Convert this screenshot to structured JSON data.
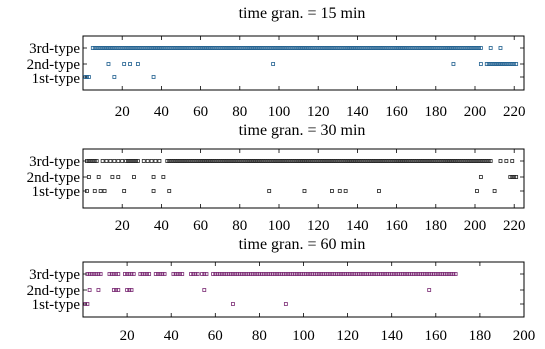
{
  "chart_data": [
    {
      "type": "scatter",
      "title": "time gran. = 15 min",
      "y_categories": [
        "3rd-type",
        "2nd-type",
        "1st-type"
      ],
      "xlim": [
        0,
        225
      ],
      "xticks": [
        20,
        40,
        60,
        80,
        100,
        120,
        140,
        160,
        180,
        200,
        220
      ],
      "marker_color": "#1f5f8f",
      "series": [
        {
          "category": "3rd-type",
          "ranges": [
            [
              5,
              203
            ]
          ],
          "x": [
            208,
            213
          ]
        },
        {
          "category": "2nd-type",
          "ranges": [
            [
              206,
              221
            ]
          ],
          "x": [
            13,
            21,
            24,
            28,
            97,
            189,
            203
          ]
        },
        {
          "category": "1st-type",
          "ranges": [
            [
              1,
              3
            ]
          ],
          "x": [
            16,
            36
          ]
        }
      ]
    },
    {
      "type": "scatter",
      "title": "time gran. = 30 min",
      "y_categories": [
        "3rd-type",
        "2nd-type",
        "1st-type"
      ],
      "xlim": [
        0,
        225
      ],
      "xticks": [
        20,
        40,
        60,
        80,
        100,
        120,
        140,
        160,
        180,
        200,
        220
      ],
      "marker_color": "#222222",
      "series": [
        {
          "category": "3rd-type",
          "ranges": [
            [
              2,
              7
            ],
            [
              22,
              28
            ],
            [
              43,
              208
            ]
          ],
          "x": [
            10,
            12,
            14,
            16,
            18,
            20,
            31,
            33,
            35,
            37,
            39
          ],
          "x2": [
            213,
            216,
            219
          ]
        },
        {
          "category": "2nd-type",
          "ranges": [
            [
              218,
              221
            ]
          ],
          "x": [
            3,
            8,
            15,
            18,
            26,
            36,
            41,
            203
          ]
        },
        {
          "category": "1st-type",
          "ranges": [],
          "x": [
            2,
            6,
            9,
            11,
            21,
            36,
            44,
            95,
            113,
            127,
            131,
            134,
            151,
            201,
            210
          ]
        }
      ]
    },
    {
      "type": "scatter",
      "title": "time gran. = 60 min",
      "y_categories": [
        "3rd-type",
        "2nd-type",
        "1st-type"
      ],
      "xlim": [
        0,
        200
      ],
      "xticks": [
        20,
        40,
        60,
        80,
        100,
        120,
        140,
        160,
        180,
        200
      ],
      "marker_color": "#7a2a73",
      "series": [
        {
          "category": "3rd-type",
          "ranges": [
            [
              2,
              8
            ],
            [
              12,
              16
            ],
            [
              19,
              23
            ],
            [
              26,
              30
            ],
            [
              33,
              37
            ],
            [
              41,
              45
            ],
            [
              49,
              52
            ],
            [
              54,
              56
            ],
            [
              59,
              169
            ]
          ],
          "x": []
        },
        {
          "category": "2nd-type",
          "ranges": [
            [
              14,
              16
            ],
            [
              20,
              22
            ]
          ],
          "x": [
            3,
            7,
            55,
            157
          ]
        },
        {
          "category": "1st-type",
          "ranges": [
            [
              1,
              2
            ]
          ],
          "x": [
            68,
            92
          ]
        }
      ]
    }
  ]
}
